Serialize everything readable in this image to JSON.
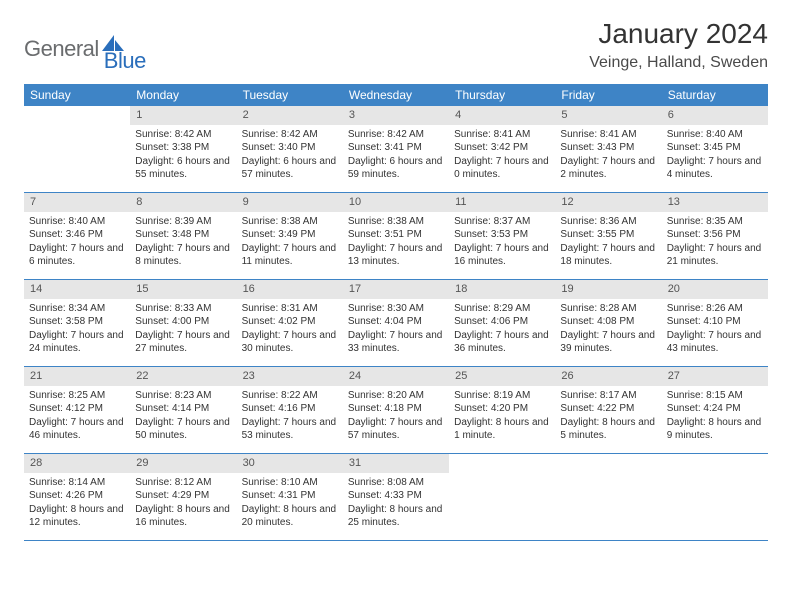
{
  "logo": {
    "text1": "General",
    "text2": "Blue"
  },
  "title": "January 2024",
  "location": "Veinge, Halland, Sweden",
  "colors": {
    "header_bg": "#3e84c6",
    "header_text": "#ffffff",
    "daynum_bg": "#e6e6e6",
    "border": "#3e84c6",
    "logo_gray": "#6a6c6e",
    "logo_blue": "#2a6ebb"
  },
  "weekdays": [
    "Sunday",
    "Monday",
    "Tuesday",
    "Wednesday",
    "Thursday",
    "Friday",
    "Saturday"
  ],
  "weeks": [
    [
      {
        "n": "",
        "sr": "",
        "ss": "",
        "dl": ""
      },
      {
        "n": "1",
        "sr": "Sunrise: 8:42 AM",
        "ss": "Sunset: 3:38 PM",
        "dl": "Daylight: 6 hours and 55 minutes."
      },
      {
        "n": "2",
        "sr": "Sunrise: 8:42 AM",
        "ss": "Sunset: 3:40 PM",
        "dl": "Daylight: 6 hours and 57 minutes."
      },
      {
        "n": "3",
        "sr": "Sunrise: 8:42 AM",
        "ss": "Sunset: 3:41 PM",
        "dl": "Daylight: 6 hours and 59 minutes."
      },
      {
        "n": "4",
        "sr": "Sunrise: 8:41 AM",
        "ss": "Sunset: 3:42 PM",
        "dl": "Daylight: 7 hours and 0 minutes."
      },
      {
        "n": "5",
        "sr": "Sunrise: 8:41 AM",
        "ss": "Sunset: 3:43 PM",
        "dl": "Daylight: 7 hours and 2 minutes."
      },
      {
        "n": "6",
        "sr": "Sunrise: 8:40 AM",
        "ss": "Sunset: 3:45 PM",
        "dl": "Daylight: 7 hours and 4 minutes."
      }
    ],
    [
      {
        "n": "7",
        "sr": "Sunrise: 8:40 AM",
        "ss": "Sunset: 3:46 PM",
        "dl": "Daylight: 7 hours and 6 minutes."
      },
      {
        "n": "8",
        "sr": "Sunrise: 8:39 AM",
        "ss": "Sunset: 3:48 PM",
        "dl": "Daylight: 7 hours and 8 minutes."
      },
      {
        "n": "9",
        "sr": "Sunrise: 8:38 AM",
        "ss": "Sunset: 3:49 PM",
        "dl": "Daylight: 7 hours and 11 minutes."
      },
      {
        "n": "10",
        "sr": "Sunrise: 8:38 AM",
        "ss": "Sunset: 3:51 PM",
        "dl": "Daylight: 7 hours and 13 minutes."
      },
      {
        "n": "11",
        "sr": "Sunrise: 8:37 AM",
        "ss": "Sunset: 3:53 PM",
        "dl": "Daylight: 7 hours and 16 minutes."
      },
      {
        "n": "12",
        "sr": "Sunrise: 8:36 AM",
        "ss": "Sunset: 3:55 PM",
        "dl": "Daylight: 7 hours and 18 minutes."
      },
      {
        "n": "13",
        "sr": "Sunrise: 8:35 AM",
        "ss": "Sunset: 3:56 PM",
        "dl": "Daylight: 7 hours and 21 minutes."
      }
    ],
    [
      {
        "n": "14",
        "sr": "Sunrise: 8:34 AM",
        "ss": "Sunset: 3:58 PM",
        "dl": "Daylight: 7 hours and 24 minutes."
      },
      {
        "n": "15",
        "sr": "Sunrise: 8:33 AM",
        "ss": "Sunset: 4:00 PM",
        "dl": "Daylight: 7 hours and 27 minutes."
      },
      {
        "n": "16",
        "sr": "Sunrise: 8:31 AM",
        "ss": "Sunset: 4:02 PM",
        "dl": "Daylight: 7 hours and 30 minutes."
      },
      {
        "n": "17",
        "sr": "Sunrise: 8:30 AM",
        "ss": "Sunset: 4:04 PM",
        "dl": "Daylight: 7 hours and 33 minutes."
      },
      {
        "n": "18",
        "sr": "Sunrise: 8:29 AM",
        "ss": "Sunset: 4:06 PM",
        "dl": "Daylight: 7 hours and 36 minutes."
      },
      {
        "n": "19",
        "sr": "Sunrise: 8:28 AM",
        "ss": "Sunset: 4:08 PM",
        "dl": "Daylight: 7 hours and 39 minutes."
      },
      {
        "n": "20",
        "sr": "Sunrise: 8:26 AM",
        "ss": "Sunset: 4:10 PM",
        "dl": "Daylight: 7 hours and 43 minutes."
      }
    ],
    [
      {
        "n": "21",
        "sr": "Sunrise: 8:25 AM",
        "ss": "Sunset: 4:12 PM",
        "dl": "Daylight: 7 hours and 46 minutes."
      },
      {
        "n": "22",
        "sr": "Sunrise: 8:23 AM",
        "ss": "Sunset: 4:14 PM",
        "dl": "Daylight: 7 hours and 50 minutes."
      },
      {
        "n": "23",
        "sr": "Sunrise: 8:22 AM",
        "ss": "Sunset: 4:16 PM",
        "dl": "Daylight: 7 hours and 53 minutes."
      },
      {
        "n": "24",
        "sr": "Sunrise: 8:20 AM",
        "ss": "Sunset: 4:18 PM",
        "dl": "Daylight: 7 hours and 57 minutes."
      },
      {
        "n": "25",
        "sr": "Sunrise: 8:19 AM",
        "ss": "Sunset: 4:20 PM",
        "dl": "Daylight: 8 hours and 1 minute."
      },
      {
        "n": "26",
        "sr": "Sunrise: 8:17 AM",
        "ss": "Sunset: 4:22 PM",
        "dl": "Daylight: 8 hours and 5 minutes."
      },
      {
        "n": "27",
        "sr": "Sunrise: 8:15 AM",
        "ss": "Sunset: 4:24 PM",
        "dl": "Daylight: 8 hours and 9 minutes."
      }
    ],
    [
      {
        "n": "28",
        "sr": "Sunrise: 8:14 AM",
        "ss": "Sunset: 4:26 PM",
        "dl": "Daylight: 8 hours and 12 minutes."
      },
      {
        "n": "29",
        "sr": "Sunrise: 8:12 AM",
        "ss": "Sunset: 4:29 PM",
        "dl": "Daylight: 8 hours and 16 minutes."
      },
      {
        "n": "30",
        "sr": "Sunrise: 8:10 AM",
        "ss": "Sunset: 4:31 PM",
        "dl": "Daylight: 8 hours and 20 minutes."
      },
      {
        "n": "31",
        "sr": "Sunrise: 8:08 AM",
        "ss": "Sunset: 4:33 PM",
        "dl": "Daylight: 8 hours and 25 minutes."
      },
      {
        "n": "",
        "sr": "",
        "ss": "",
        "dl": ""
      },
      {
        "n": "",
        "sr": "",
        "ss": "",
        "dl": ""
      },
      {
        "n": "",
        "sr": "",
        "ss": "",
        "dl": ""
      }
    ]
  ]
}
